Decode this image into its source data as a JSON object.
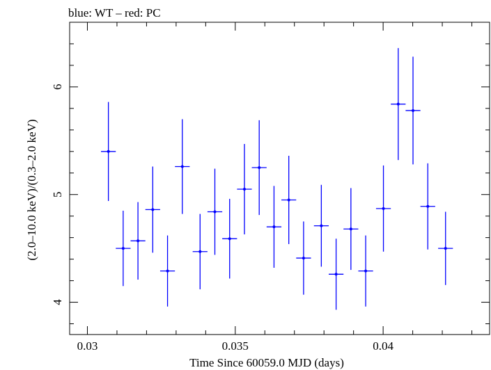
{
  "chart_data": {
    "type": "scatter",
    "title": "blue: WT – red: PC",
    "xlabel": "Time Since 60059.0 MJD (days)",
    "ylabel": "(2.0–10.0 keV)/(0.3–2.0 keV)",
    "xlim": [
      0.0294,
      0.0436
    ],
    "ylim": [
      3.7,
      6.6
    ],
    "xticks": [
      0.03,
      0.035,
      0.04
    ],
    "xtick_labels": [
      "0.03",
      "0.035",
      "0.04"
    ],
    "yticks": [
      4,
      5,
      6
    ],
    "ytick_labels": [
      "4",
      "5",
      "6"
    ],
    "grid": false,
    "series": [
      {
        "color": "#0000ff",
        "points": [
          {
            "x": 0.03071,
            "xerr": 0.00025,
            "y": 5.4,
            "yerr": 0.46
          },
          {
            "x": 0.03121,
            "xerr": 0.00025,
            "y": 4.5,
            "yerr": 0.35
          },
          {
            "x": 0.03171,
            "xerr": 0.00025,
            "y": 4.57,
            "yerr": 0.36
          },
          {
            "x": 0.03221,
            "xerr": 0.00025,
            "y": 4.86,
            "yerr": 0.4
          },
          {
            "x": 0.03271,
            "xerr": 0.00025,
            "y": 4.29,
            "yerr": 0.33
          },
          {
            "x": 0.03321,
            "xerr": 0.00025,
            "y": 5.26,
            "yerr": 0.44
          },
          {
            "x": 0.03381,
            "xerr": 0.00025,
            "y": 4.47,
            "yerr": 0.35
          },
          {
            "x": 0.03431,
            "xerr": 0.00025,
            "y": 4.84,
            "yerr": 0.4
          },
          {
            "x": 0.03481,
            "xerr": 0.00025,
            "y": 4.59,
            "yerr": 0.37
          },
          {
            "x": 0.03531,
            "xerr": 0.00025,
            "y": 5.05,
            "yerr": 0.42
          },
          {
            "x": 0.03581,
            "xerr": 0.00025,
            "y": 5.25,
            "yerr": 0.44
          },
          {
            "x": 0.03631,
            "xerr": 0.00025,
            "y": 4.7,
            "yerr": 0.38
          },
          {
            "x": 0.03681,
            "xerr": 0.00025,
            "y": 4.95,
            "yerr": 0.41
          },
          {
            "x": 0.03731,
            "xerr": 0.00025,
            "y": 4.41,
            "yerr": 0.34
          },
          {
            "x": 0.03791,
            "xerr": 0.00025,
            "y": 4.71,
            "yerr": 0.38
          },
          {
            "x": 0.03841,
            "xerr": 0.00025,
            "y": 4.26,
            "yerr": 0.33
          },
          {
            "x": 0.03891,
            "xerr": 0.00025,
            "y": 4.68,
            "yerr": 0.38
          },
          {
            "x": 0.03941,
            "xerr": 0.00025,
            "y": 4.29,
            "yerr": 0.33
          },
          {
            "x": 0.04001,
            "xerr": 0.00025,
            "y": 4.87,
            "yerr": 0.4
          },
          {
            "x": 0.04051,
            "xerr": 0.00025,
            "y": 5.84,
            "yerr": 0.52
          },
          {
            "x": 0.04101,
            "xerr": 0.00025,
            "y": 5.78,
            "yerr": 0.5
          },
          {
            "x": 0.04151,
            "xerr": 0.00025,
            "y": 4.89,
            "yerr": 0.4
          },
          {
            "x": 0.04211,
            "xerr": 0.00025,
            "y": 4.5,
            "yerr": 0.34
          }
        ]
      }
    ]
  }
}
